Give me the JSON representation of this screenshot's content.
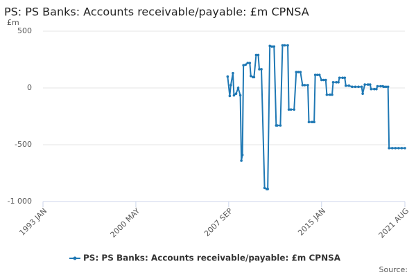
{
  "chart_data": {
    "type": "line",
    "title": "PS: PS Banks: Accounts receivable/payable: £m CPNSA",
    "y_label": "£m",
    "source": "Source:",
    "x": [
      "2007 AUG",
      "2007 OCT",
      "2007 NOV",
      "2008 JAN",
      "2008 FEB",
      "2008 APR",
      "2008 JUN",
      "2008 AUG",
      "2008 SEP",
      "2008 OCT",
      "2008 NOV",
      "2009 JAN",
      "2009 MAR",
      "2009 MAY",
      "2009 JUN",
      "2009 AUG",
      "2009 SEP",
      "2009 NOV",
      "2010 JAN",
      "2010 FEB",
      "2010 APR",
      "2010 JUL",
      "2010 SEP",
      "2010 OCT",
      "2010 DEC",
      "2011 FEB",
      "2011 APR",
      "2011 JUN",
      "2011 JUL",
      "2011 OCT",
      "2011 DEC",
      "2012 FEB",
      "2012 MAY",
      "2012 JUN",
      "2012 AUG",
      "2012 NOV",
      "2013 JAN",
      "2013 MAR",
      "2013 MAY",
      "2013 JUL",
      "2013 SEP",
      "2013 DEC",
      "2014 JAN",
      "2014 APR",
      "2014 JUN",
      "2014 JUL",
      "2014 SEP",
      "2014 NOV",
      "2015 JAN",
      "2015 MAR",
      "2015 MAY",
      "2015 JUN",
      "2015 SEP",
      "2015 NOV",
      "2015 DEC",
      "2016 MAR",
      "2016 MAY",
      "2016 JUN",
      "2016 SEP",
      "2016 NOV",
      "2016 DEC",
      "2017 MAR",
      "2017 JUN",
      "2017 SEP",
      "2017 DEC",
      "2018 MAR",
      "2018 APR",
      "2018 JUN",
      "2018 SEP",
      "2018 NOV",
      "2018 DEC",
      "2019 MAR",
      "2019 MAY",
      "2019 JUN",
      "2019 SEP",
      "2019 NOV",
      "2019 DEC",
      "2020 FEB",
      "2020 APR",
      "2020 MAY",
      "2020 AUG",
      "2020 NOV",
      "2021 FEB",
      "2021 MAY",
      "2021 AUG"
    ],
    "series": [
      {
        "name": "PS: PS Banks: Accounts receivable/payable: £m CPNSA",
        "color": "#1f78b4",
        "values": [
          100,
          -70,
          25,
          130,
          -65,
          -50,
          0,
          -65,
          -640,
          -590,
          200,
          205,
          220,
          220,
          105,
          95,
          95,
          290,
          290,
          165,
          165,
          -880,
          -890,
          -890,
          370,
          365,
          365,
          -330,
          -330,
          -330,
          375,
          375,
          375,
          -190,
          -190,
          -190,
          140,
          140,
          140,
          25,
          25,
          25,
          -300,
          -300,
          -300,
          115,
          115,
          115,
          70,
          70,
          70,
          -60,
          -60,
          -60,
          50,
          50,
          50,
          90,
          90,
          90,
          20,
          20,
          10,
          10,
          10,
          10,
          -50,
          30,
          30,
          30,
          -10,
          -10,
          -10,
          15,
          15,
          15,
          10,
          10,
          10,
          -530,
          -530,
          -530,
          -530,
          -530,
          -530
        ]
      }
    ],
    "xlim": [
      "1993 JAN",
      "2021 AUG"
    ],
    "xticks": [
      "1993 JAN",
      "2000 MAY",
      "2007 SEP",
      "2015 JAN",
      "2021 AUG"
    ],
    "ylim": [
      -1000,
      500
    ],
    "yticks": [
      500,
      0,
      -500,
      {
        "value": -1000,
        "label": "-1 000"
      }
    ],
    "grid": true
  }
}
